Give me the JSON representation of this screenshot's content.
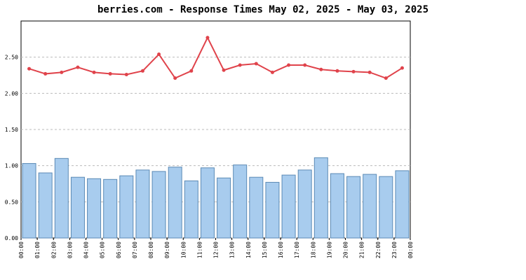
{
  "chart_data": {
    "type": "bar_line",
    "title": "berries.com - Response Times May 02, 2025 - May 03, 2025",
    "x_labels": [
      "00:00",
      "01:00",
      "02:00",
      "03:00",
      "04:00",
      "05:00",
      "06:00",
      "07:00",
      "08:00",
      "09:00",
      "10:00",
      "11:00",
      "12:00",
      "13:00",
      "14:00",
      "15:00",
      "16:00",
      "17:00",
      "18:00",
      "19:00",
      "20:00",
      "21:00",
      "22:00",
      "23:00",
      "00:00"
    ],
    "series": [
      {
        "type": "bar",
        "color": "#a8ccee",
        "edge_color": "#5b8ab5",
        "values": [
          1.03,
          0.9,
          1.1,
          0.84,
          0.82,
          0.81,
          0.86,
          0.94,
          0.92,
          0.98,
          0.79,
          0.97,
          0.83,
          1.01,
          0.84,
          0.77,
          0.87,
          0.94,
          1.11,
          0.89,
          0.85,
          0.88,
          0.85,
          0.93
        ]
      },
      {
        "type": "line",
        "color": "#e0434b",
        "values": [
          2.34,
          2.27,
          2.29,
          2.36,
          2.29,
          2.27,
          2.26,
          2.31,
          2.54,
          2.21,
          2.31,
          2.77,
          2.32,
          2.39,
          2.41,
          2.29,
          2.39,
          2.39,
          2.33,
          2.31,
          2.3,
          2.29,
          2.21,
          2.35
        ]
      }
    ],
    "ylim": [
      0,
      3
    ],
    "yticks": [
      {
        "value": 0,
        "label": "0.00"
      },
      {
        "value": 0.5,
        "label": "0.50"
      },
      {
        "value": 1,
        "label": "1.00"
      },
      {
        "value": 1.5,
        "label": "1.50"
      },
      {
        "value": 2,
        "label": "2.00"
      },
      {
        "value": 2.5,
        "label": "2.50"
      }
    ],
    "grid": true
  }
}
